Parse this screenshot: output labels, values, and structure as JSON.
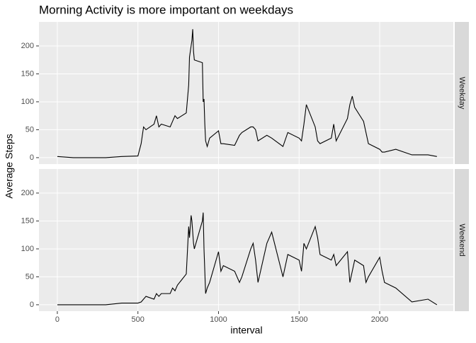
{
  "chart_data": {
    "type": "line",
    "title": "Morning Activity is more important on weekdays",
    "x_label": "interval",
    "y_label": "Average Steps",
    "x": [
      0,
      100,
      200,
      300,
      400,
      500,
      520,
      535,
      550,
      600,
      615,
      630,
      645,
      700,
      715,
      730,
      745,
      800,
      815,
      820,
      830,
      835,
      840,
      845,
      850,
      900,
      905,
      910,
      915,
      920,
      930,
      945,
      1000,
      1015,
      1030,
      1100,
      1130,
      1145,
      1200,
      1215,
      1230,
      1245,
      1300,
      1330,
      1400,
      1430,
      1500,
      1515,
      1530,
      1545,
      1600,
      1615,
      1630,
      1700,
      1715,
      1730,
      1800,
      1815,
      1830,
      1845,
      1900,
      1915,
      1930,
      2000,
      2015,
      2030,
      2100,
      2200,
      2300,
      2355
    ],
    "series": [
      {
        "name": "Weekday",
        "color": "#000000",
        "values": [
          2,
          0,
          0,
          0,
          2,
          3,
          25,
          55,
          50,
          60,
          75,
          55,
          60,
          55,
          65,
          75,
          70,
          80,
          130,
          180,
          200,
          210,
          230,
          190,
          175,
          170,
          100,
          105,
          60,
          30,
          20,
          35,
          48,
          25,
          25,
          22,
          40,
          45,
          55,
          55,
          50,
          30,
          40,
          35,
          20,
          45,
          35,
          30,
          60,
          95,
          55,
          30,
          25,
          35,
          60,
          30,
          70,
          95,
          110,
          90,
          65,
          45,
          25,
          15,
          10,
          10,
          15,
          5,
          5,
          2
        ]
      },
      {
        "name": "Weekend",
        "color": "#000000",
        "values": [
          0,
          0,
          0,
          0,
          3,
          3,
          5,
          10,
          15,
          10,
          20,
          15,
          20,
          20,
          30,
          25,
          35,
          55,
          140,
          120,
          160,
          150,
          130,
          110,
          100,
          150,
          165,
          100,
          60,
          20,
          30,
          40,
          95,
          60,
          70,
          60,
          40,
          50,
          100,
          110,
          80,
          40,
          110,
          130,
          50,
          90,
          80,
          60,
          110,
          100,
          140,
          120,
          90,
          80,
          90,
          70,
          95,
          40,
          60,
          80,
          70,
          40,
          50,
          85,
          60,
          40,
          30,
          5,
          10,
          0
        ]
      }
    ],
    "xlim": [
      -114,
      2457
    ],
    "xticks": [
      0,
      500,
      1000,
      1500,
      2000
    ],
    "ylim": [
      -11.5,
      243
    ],
    "yticks": [
      0,
      50,
      100,
      150,
      200
    ],
    "grid": true
  }
}
